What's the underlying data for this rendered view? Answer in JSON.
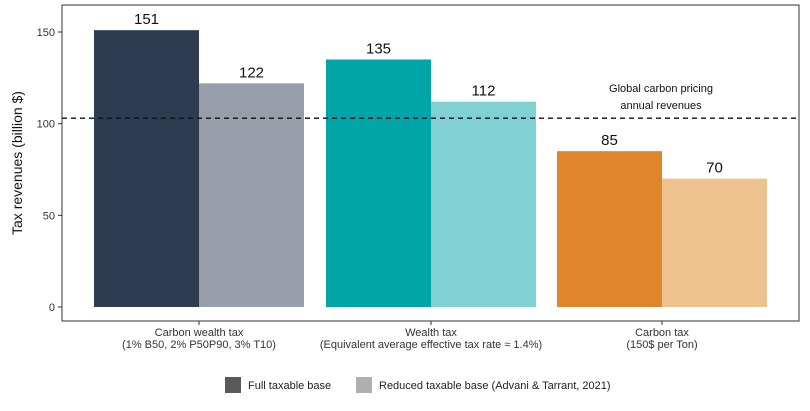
{
  "chart_data": {
    "type": "bar",
    "ylabel": "Tax revenues (billion $)",
    "ylim": [
      0,
      157
    ],
    "yticks": [
      0,
      50,
      100,
      150
    ],
    "grid": false,
    "legend_position": "bottom",
    "groups": [
      {
        "label_lines": [
          "Carbon wealth tax",
          "(1% B50, 2% P50P90, 3% T10)"
        ],
        "bars": [
          {
            "series": "Full taxable base",
            "value": 151,
            "color": "#2e3c51"
          },
          {
            "series": "Reduced taxable base (Advani & Tarrant, 2021)",
            "value": 122,
            "color": "#979ea9"
          }
        ]
      },
      {
        "label_lines": [
          "Wealth tax",
          "(Equivalent average effective tax rate ≈ 1.4%)"
        ],
        "bars": [
          {
            "series": "Full taxable base",
            "value": 135,
            "color": "#00a5a8"
          },
          {
            "series": "Reduced taxable base (Advani & Tarrant, 2021)",
            "value": 112,
            "color": "#7fd1d3"
          }
        ]
      },
      {
        "label_lines": [
          "Carbon tax",
          "(150$ per Ton)"
        ],
        "bars": [
          {
            "series": "Full taxable base",
            "value": 85,
            "color": "#df852c"
          },
          {
            "series": "Reduced taxable base (Advani & Tarrant, 2021)",
            "value": 70,
            "color": "#eec28f"
          }
        ]
      }
    ],
    "reference_line": {
      "value": 103,
      "label_lines": [
        "Global carbon pricing",
        "annual revenues"
      ]
    },
    "legend": [
      {
        "label": "Full taxable base",
        "color": "#5a5a5a"
      },
      {
        "label": "Reduced taxable base (Advani & Tarrant, 2021)",
        "color": "#b0b0b0"
      }
    ]
  }
}
